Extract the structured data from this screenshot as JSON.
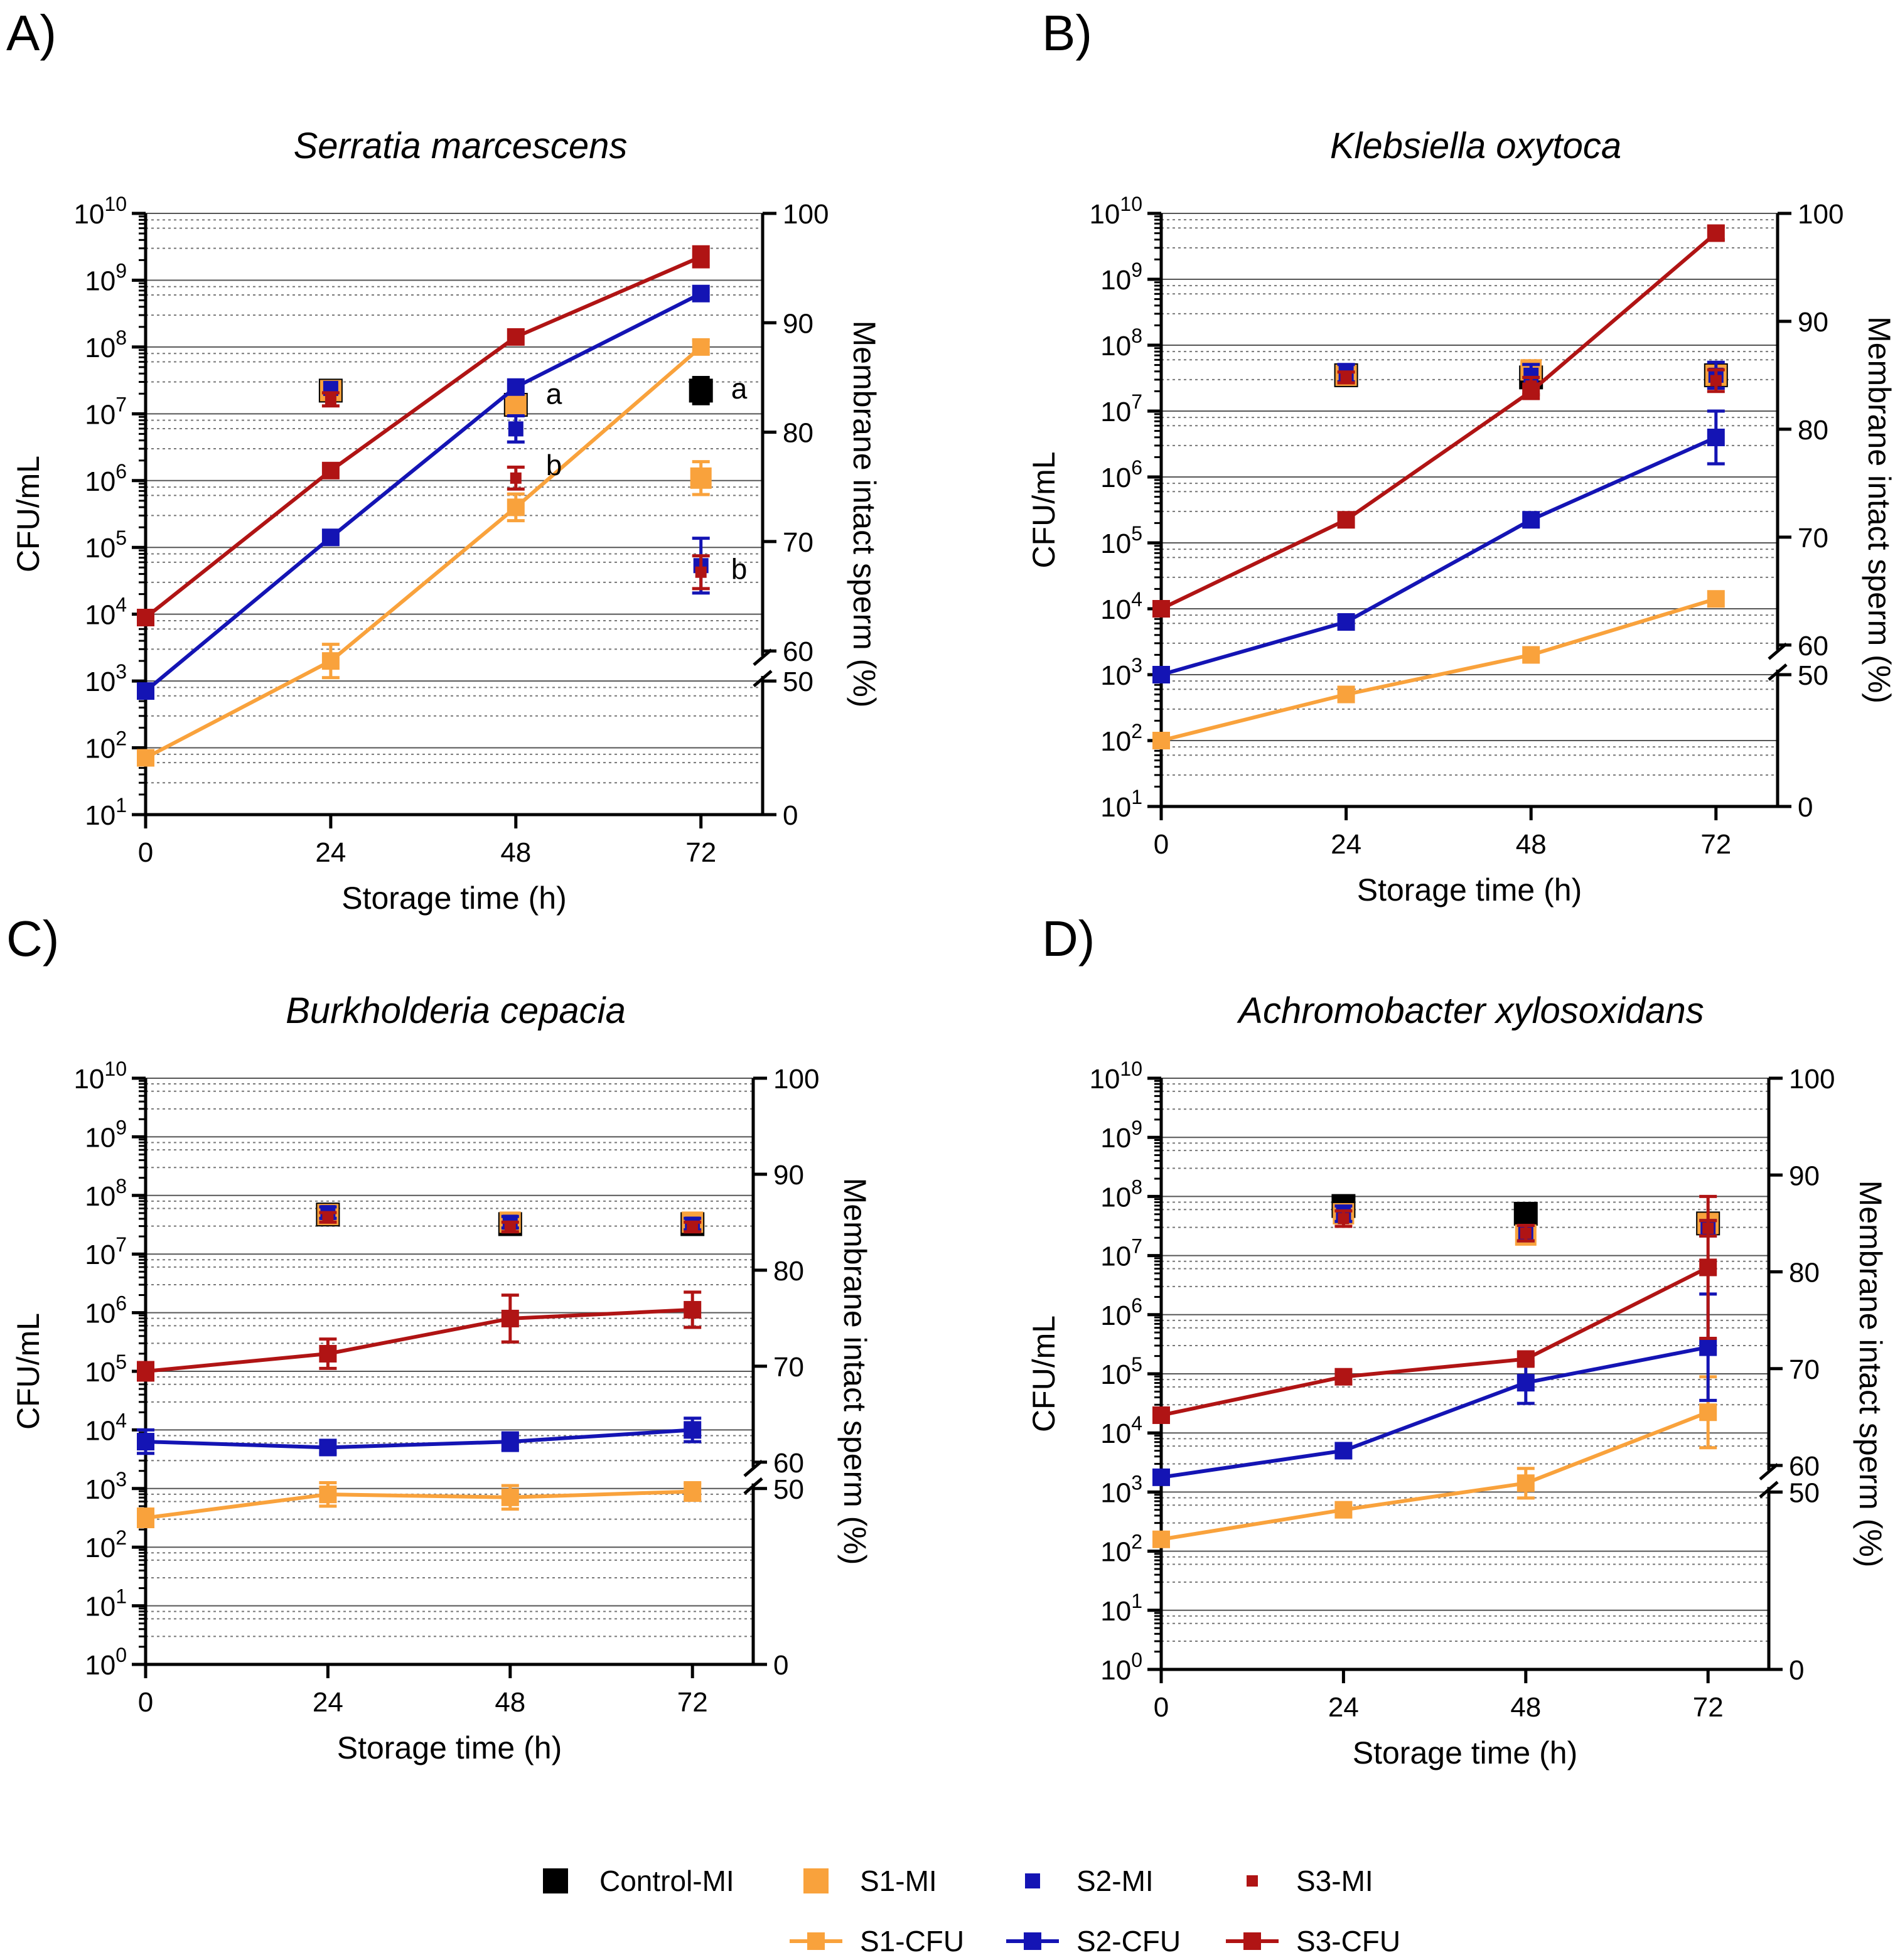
{
  "colors": {
    "control": "#000000",
    "s1": "#f9a23c",
    "s2": "#1414b4",
    "s3": "#b01414",
    "grid_major": "#555555",
    "grid_minor": "#777777"
  },
  "legend": {
    "entries": [
      {
        "label": "Control-MI",
        "color": "control",
        "kind": "mi-big"
      },
      {
        "label": "S1-MI",
        "color": "s1",
        "kind": "mi-big"
      },
      {
        "label": "S2-MI",
        "color": "s2",
        "kind": "mi-mid"
      },
      {
        "label": "S3-MI",
        "color": "s3",
        "kind": "mi-small"
      },
      {
        "label": "S1-CFU",
        "color": "s1",
        "kind": "cfu"
      },
      {
        "label": "S2-CFU",
        "color": "s2",
        "kind": "cfu"
      },
      {
        "label": "S3-CFU",
        "color": "s3",
        "kind": "cfu"
      }
    ]
  },
  "chart_data": [
    {
      "type": "line",
      "panel": "A)",
      "title": "Serratia marcescens",
      "xlabel": "Storage time (h)",
      "ylabel": "CFU/mL",
      "y2label": "Membrane intact sperm (%)",
      "x": [
        0,
        24,
        48,
        72
      ],
      "x_ticks": [
        "0",
        "24",
        "48",
        "72"
      ],
      "y_scale": "log10",
      "ylim_exp": [
        1,
        10
      ],
      "y_tick_exps": [
        1,
        2,
        3,
        4,
        5,
        6,
        7,
        8,
        9,
        10
      ],
      "y2_ticks": [
        0,
        50,
        60,
        70,
        80,
        90,
        100
      ],
      "y2_axis_break": "between 50 and 60",
      "cfu_series": [
        {
          "name": "S1-CFU",
          "color": "s1",
          "values_log10": [
            1.85,
            3.3,
            5.6,
            8.0
          ],
          "err_log10": [
            0,
            0.25,
            0.2,
            0.1
          ]
        },
        {
          "name": "S2-CFU",
          "color": "s2",
          "values_log10": [
            2.85,
            5.15,
            7.4,
            8.8
          ],
          "err_log10": [
            0,
            0,
            0,
            0
          ]
        },
        {
          "name": "S3-CFU",
          "color": "s3",
          "values_log10": [
            3.95,
            6.15,
            8.15,
            9.35
          ],
          "err_log10": [
            0,
            0,
            0,
            0.15
          ]
        }
      ],
      "mi_series": [
        {
          "name": "Control-MI",
          "color": "control",
          "values_pct": [
            83.8,
            82.5,
            83.8
          ],
          "x": [
            24,
            48,
            72
          ],
          "err_pct": [
            0,
            0,
            1.2
          ]
        },
        {
          "name": "S1-MI",
          "color": "s1",
          "values_pct": [
            83.8,
            82.5,
            75.8
          ],
          "x": [
            24,
            48,
            72
          ],
          "err_pct": [
            0,
            0,
            1.5
          ]
        },
        {
          "name": "S2-MI",
          "color": "s2",
          "values_pct": [
            84.0,
            80.3,
            67.8
          ],
          "x": [
            24,
            48,
            72
          ],
          "err_pct": [
            0,
            1.2,
            2.5
          ]
        },
        {
          "name": "S3-MI",
          "color": "s3",
          "values_pct": [
            83.0,
            75.8,
            67.2
          ],
          "x": [
            24,
            48,
            72
          ],
          "err_pct": [
            0.6,
            1.0,
            1.5
          ]
        }
      ],
      "annotations": [
        {
          "text": "a",
          "x": 48,
          "y_pct": 83.5
        },
        {
          "text": "b",
          "x": 48,
          "y_pct": 77.0
        },
        {
          "text": "a",
          "x": 72,
          "y_pct": 84.0
        },
        {
          "text": "b",
          "x": 72,
          "y_pct": 67.5
        }
      ]
    },
    {
      "type": "line",
      "panel": "B)",
      "title": "Klebsiella oxytoca",
      "xlabel": "Storage time (h)",
      "ylabel": "CFU/mL",
      "y2label": "Membrane intact sperm (%)",
      "x": [
        0,
        24,
        48,
        72
      ],
      "x_ticks": [
        "0",
        "24",
        "48",
        "72"
      ],
      "y_scale": "log10",
      "ylim_exp": [
        1,
        10
      ],
      "y_tick_exps": [
        1,
        2,
        3,
        4,
        5,
        6,
        7,
        8,
        9,
        10
      ],
      "y2_ticks": [
        0,
        50,
        60,
        70,
        80,
        90,
        100
      ],
      "y2_axis_break": "between 50 and 60",
      "cfu_series": [
        {
          "name": "S1-CFU",
          "color": "s1",
          "values_log10": [
            2.0,
            2.7,
            3.3,
            4.15
          ],
          "err_log10": [
            0,
            0,
            0,
            0
          ]
        },
        {
          "name": "S2-CFU",
          "color": "s2",
          "values_log10": [
            3.0,
            3.8,
            5.35,
            6.6
          ],
          "err_log10": [
            0,
            0,
            0,
            0.4
          ]
        },
        {
          "name": "S3-CFU",
          "color": "s3",
          "values_log10": [
            4.0,
            5.35,
            7.3,
            9.7
          ],
          "err_log10": [
            0,
            0,
            0,
            0.1
          ]
        }
      ],
      "mi_series": [
        {
          "name": "Control-MI",
          "color": "control",
          "values_pct": [
            85.0,
            84.8,
            85.0
          ],
          "x": [
            24,
            48,
            72
          ],
          "err_pct": [
            0,
            0,
            0
          ]
        },
        {
          "name": "S1-MI",
          "color": "s1",
          "values_pct": [
            85.0,
            85.5,
            85.0
          ],
          "x": [
            24,
            48,
            72
          ],
          "err_pct": [
            0,
            0,
            0
          ]
        },
        {
          "name": "S2-MI",
          "color": "s2",
          "values_pct": [
            85.2,
            85.0,
            85.0
          ],
          "x": [
            24,
            48,
            72
          ],
          "err_pct": [
            0.8,
            1.0,
            1.2
          ]
        },
        {
          "name": "S3-MI",
          "color": "s3",
          "values_pct": [
            84.8,
            84.0,
            84.5
          ],
          "x": [
            24,
            48,
            72
          ],
          "err_pct": [
            0.5,
            0.8,
            1.0
          ]
        }
      ],
      "annotations": []
    },
    {
      "type": "line",
      "panel": "C)",
      "title": "Burkholderia cepacia",
      "xlabel": "Storage time (h)",
      "ylabel": "CFU/mL",
      "y2label": "Membrane intact sperm (%)",
      "x": [
        0,
        24,
        48,
        72
      ],
      "x_ticks": [
        "0",
        "24",
        "48",
        "72"
      ],
      "y_scale": "log10",
      "ylim_exp": [
        0,
        10
      ],
      "y_tick_exps": [
        0,
        1,
        2,
        3,
        4,
        5,
        6,
        7,
        8,
        9,
        10
      ],
      "y2_ticks": [
        0,
        50,
        60,
        70,
        80,
        90,
        100
      ],
      "y2_axis_break": "between 50 and 60",
      "cfu_series": [
        {
          "name": "S1-CFU",
          "color": "s1",
          "values_log10": [
            2.5,
            2.9,
            2.85,
            2.95
          ],
          "err_log10": [
            0.15,
            0.2,
            0.2,
            0.15
          ]
        },
        {
          "name": "S2-CFU",
          "color": "s2",
          "values_log10": [
            3.8,
            3.7,
            3.8,
            4.0
          ],
          "err_log10": [
            0.2,
            0.1,
            0.15,
            0.2
          ]
        },
        {
          "name": "S3-CFU",
          "color": "s3",
          "values_log10": [
            5.0,
            5.3,
            5.9,
            6.05
          ],
          "err_log10": [
            0.15,
            0.25,
            0.4,
            0.3
          ]
        }
      ],
      "mi_series": [
        {
          "name": "Control-MI",
          "color": "control",
          "values_pct": [
            85.8,
            84.8,
            84.8
          ],
          "x": [
            24,
            48,
            72
          ],
          "err_pct": [
            0,
            0,
            0
          ]
        },
        {
          "name": "S1-MI",
          "color": "s1",
          "values_pct": [
            85.8,
            85.0,
            85.0
          ],
          "x": [
            24,
            48,
            72
          ],
          "err_pct": [
            0,
            0,
            0
          ]
        },
        {
          "name": "S2-MI",
          "color": "s2",
          "values_pct": [
            86.0,
            85.0,
            84.8
          ],
          "x": [
            24,
            48,
            72
          ],
          "err_pct": [
            0.6,
            0.6,
            0.6
          ]
        },
        {
          "name": "S3-MI",
          "color": "s3",
          "values_pct": [
            85.5,
            84.5,
            84.5
          ],
          "x": [
            24,
            48,
            72
          ],
          "err_pct": [
            0.5,
            0.5,
            0.5
          ]
        }
      ],
      "annotations": []
    },
    {
      "type": "line",
      "panel": "D)",
      "title": "Achromobacter xylosoxidans",
      "xlabel": "Storage time (h)",
      "ylabel": "CFU/mL",
      "y2label": "Membrane intact sperm (%)",
      "x": [
        0,
        24,
        48,
        72
      ],
      "x_ticks": [
        "0",
        "24",
        "48",
        "72"
      ],
      "y_scale": "log10",
      "ylim_exp": [
        0,
        10
      ],
      "y_tick_exps": [
        0,
        1,
        2,
        3,
        4,
        5,
        6,
        7,
        8,
        9,
        10
      ],
      "y2_ticks": [
        0,
        50,
        60,
        70,
        80,
        90,
        100
      ],
      "y2_axis_break": "between 50 and 60",
      "cfu_series": [
        {
          "name": "S1-CFU",
          "color": "s1",
          "values_log10": [
            2.2,
            2.7,
            3.15,
            4.35
          ],
          "err_log10": [
            0,
            0,
            0.25,
            0.6
          ]
        },
        {
          "name": "S2-CFU",
          "color": "s2",
          "values_log10": [
            3.25,
            3.7,
            4.85,
            5.45
          ],
          "err_log10": [
            0,
            0,
            0.35,
            0.9
          ]
        },
        {
          "name": "S3-CFU",
          "color": "s3",
          "values_log10": [
            4.3,
            4.95,
            5.25,
            6.8
          ],
          "err_log10": [
            0,
            0,
            0.1,
            1.2
          ]
        }
      ],
      "mi_series": [
        {
          "name": "Control-MI",
          "color": "control",
          "values_pct": [
            86.8,
            86.0,
            85.0
          ],
          "x": [
            24,
            48,
            72
          ],
          "err_pct": [
            0,
            0,
            0
          ]
        },
        {
          "name": "S1-MI",
          "color": "s1",
          "values_pct": [
            86.0,
            83.8,
            85.0
          ],
          "x": [
            24,
            48,
            72
          ],
          "err_pct": [
            0,
            0,
            0
          ]
        },
        {
          "name": "S2-MI",
          "color": "s2",
          "values_pct": [
            86.0,
            84.0,
            84.5
          ],
          "x": [
            24,
            48,
            72
          ],
          "err_pct": [
            0.8,
            0.8,
            0.8
          ]
        },
        {
          "name": "S3-MI",
          "color": "s3",
          "values_pct": [
            85.5,
            84.0,
            84.5
          ],
          "x": [
            24,
            48,
            72
          ],
          "err_pct": [
            0.8,
            0.8,
            0.8
          ]
        }
      ],
      "annotations": []
    }
  ]
}
